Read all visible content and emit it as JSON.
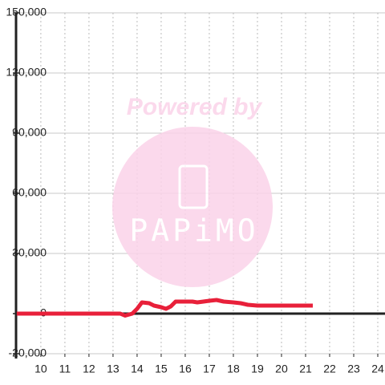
{
  "chart_data": {
    "type": "line",
    "watermark": [
      "Powered by",
      "PAPiMO"
    ],
    "x": [
      9,
      10,
      11,
      12,
      13,
      13.3,
      13.5,
      13.8,
      14.0,
      14.2,
      14.5,
      14.7,
      15.0,
      15.2,
      15.4,
      15.6,
      16.0,
      16.3,
      16.5,
      17.0,
      17.3,
      17.6,
      18.0,
      18.3,
      18.6,
      19.0,
      20.0,
      21.3
    ],
    "values": [
      0,
      0,
      0,
      0,
      0,
      0,
      -1000,
      0,
      2400,
      5600,
      5200,
      4000,
      3200,
      2400,
      3600,
      6000,
      6000,
      6000,
      5600,
      6400,
      6800,
      6000,
      5600,
      5200,
      4400,
      4000,
      4000,
      4000
    ],
    "color": "#e8203a",
    "xlim": [
      8.97,
      24.3
    ],
    "xticks": [
      10,
      11,
      12,
      13,
      14,
      15,
      16,
      17,
      18,
      19,
      20,
      21,
      22,
      23,
      24
    ],
    "ylim": [
      -20000,
      150000
    ],
    "yticks": [
      {
        "value": -20000,
        "label": "-20,000"
      },
      0,
      {
        "value": 30000,
        "label": "30,000"
      },
      {
        "value": 60000,
        "label": "60,000"
      },
      {
        "value": 90000,
        "label": "90,000"
      },
      {
        "value": 120000,
        "label": "120,000"
      },
      {
        "value": 150000,
        "label": "150,000"
      }
    ],
    "grid": true
  }
}
